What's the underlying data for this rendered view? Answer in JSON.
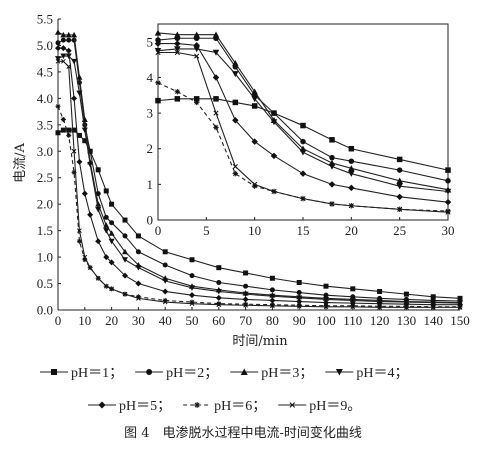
{
  "chart_data": {
    "type": "line",
    "caption": "图 4　电渗脱水过程中电流-时间变化曲线",
    "xlabel": "时间/min",
    "ylabel": "电流/A",
    "xlim": [
      0,
      150
    ],
    "ylim": [
      0,
      5.5
    ],
    "x_ticks": [
      "0",
      "10",
      "20",
      "30",
      "40",
      "50",
      "60",
      "70",
      "80",
      "90",
      "100",
      "110",
      "120",
      "130",
      "140",
      "150"
    ],
    "y_ticks": [
      "0.0",
      "0.5",
      "1.0",
      "1.5",
      "2.0",
      "2.5",
      "3.0",
      "3.5",
      "4.0",
      "4.5",
      "5.0",
      "5.5"
    ],
    "grid": false,
    "legend_position": "bottom",
    "inset": {
      "xlim": [
        0,
        30
      ],
      "ylim": [
        0,
        5.5
      ],
      "x_ticks": [
        "0",
        "5",
        "10",
        "15",
        "20",
        "25",
        "30"
      ],
      "y_ticks": [
        "0",
        "1",
        "2",
        "3",
        "4",
        "5"
      ]
    },
    "series": [
      {
        "name": "pH＝1",
        "legend_label": "pH＝1；",
        "marker": "square",
        "dash": "solid",
        "x": [
          0,
          2,
          4,
          6,
          8,
          10,
          12,
          15,
          18,
          20,
          25,
          30,
          40,
          50,
          60,
          70,
          80,
          90,
          100,
          110,
          120,
          130,
          140,
          150
        ],
        "y": [
          3.35,
          3.4,
          3.4,
          3.4,
          3.3,
          3.2,
          3.0,
          2.65,
          2.25,
          2.0,
          1.7,
          1.4,
          1.1,
          0.95,
          0.8,
          0.7,
          0.6,
          0.52,
          0.45,
          0.4,
          0.35,
          0.3,
          0.25,
          0.22
        ]
      },
      {
        "name": "pH＝2",
        "legend_label": "pH＝2；",
        "marker": "circle",
        "dash": "solid",
        "x": [
          0,
          2,
          4,
          6,
          8,
          10,
          12,
          15,
          18,
          20,
          25,
          30,
          40,
          50,
          60,
          70,
          80,
          90,
          100,
          110,
          120,
          130,
          140,
          150
        ],
        "y": [
          5.05,
          5.1,
          5.1,
          5.1,
          4.3,
          3.5,
          3.0,
          2.2,
          1.75,
          1.65,
          1.4,
          1.1,
          0.85,
          0.65,
          0.52,
          0.45,
          0.38,
          0.33,
          0.28,
          0.25,
          0.22,
          0.2,
          0.18,
          0.17
        ]
      },
      {
        "name": "pH＝3",
        "legend_label": "pH＝3；",
        "marker": "triangle",
        "dash": "solid",
        "x": [
          0,
          2,
          4,
          6,
          8,
          10,
          12,
          15,
          18,
          20,
          25,
          30,
          40,
          50,
          60,
          70,
          80,
          90,
          100,
          110,
          120,
          130,
          140,
          150
        ],
        "y": [
          5.25,
          5.2,
          5.2,
          5.2,
          4.4,
          3.6,
          2.8,
          2.0,
          1.6,
          1.45,
          1.1,
          0.85,
          0.6,
          0.45,
          0.38,
          0.32,
          0.28,
          0.25,
          0.22,
          0.2,
          0.18,
          0.16,
          0.15,
          0.14
        ]
      },
      {
        "name": "pH＝4",
        "legend_label": "pH＝4；",
        "marker": "triangle-down",
        "dash": "solid",
        "x": [
          0,
          2,
          4,
          6,
          8,
          10,
          12,
          15,
          18,
          20,
          25,
          30,
          40,
          50,
          60,
          70,
          80,
          90,
          100,
          110,
          120,
          130,
          140,
          150
        ],
        "y": [
          4.75,
          4.8,
          4.8,
          4.7,
          4.1,
          3.4,
          2.75,
          1.9,
          1.5,
          1.3,
          0.95,
          0.8,
          0.55,
          0.42,
          0.35,
          0.3,
          0.26,
          0.23,
          0.2,
          0.18,
          0.16,
          0.15,
          0.14,
          0.13
        ]
      },
      {
        "name": "pH＝5",
        "legend_label": "pH＝5；",
        "marker": "diamond",
        "dash": "solid",
        "x": [
          0,
          2,
          4,
          6,
          8,
          10,
          12,
          15,
          18,
          20,
          25,
          30,
          40,
          50,
          60,
          70,
          80,
          90,
          100,
          110,
          120,
          130,
          140,
          150
        ],
        "y": [
          4.95,
          4.95,
          4.9,
          4.0,
          2.8,
          2.2,
          1.8,
          1.3,
          1.0,
          0.9,
          0.65,
          0.5,
          0.35,
          0.28,
          0.23,
          0.2,
          0.18,
          0.16,
          0.14,
          0.13,
          0.12,
          0.11,
          0.1,
          0.1
        ]
      },
      {
        "name": "pH＝6",
        "legend_label": "pH＝6；",
        "marker": "asterisk",
        "dash": "dashed",
        "x": [
          0,
          2,
          4,
          6,
          8,
          10,
          12,
          15,
          18,
          20,
          25,
          30,
          40,
          50,
          60,
          70,
          80,
          90,
          100,
          110,
          120,
          130,
          140,
          150
        ],
        "y": [
          3.85,
          3.6,
          3.3,
          2.6,
          1.3,
          0.95,
          0.8,
          0.6,
          0.45,
          0.4,
          0.3,
          0.25,
          0.18,
          0.15,
          0.12,
          0.11,
          0.1,
          0.09,
          0.08,
          0.08,
          0.07,
          0.07,
          0.06,
          0.06
        ]
      },
      {
        "name": "pH＝9",
        "legend_label": "pH＝9。",
        "marker": "x",
        "dash": "solid",
        "x": [
          0,
          2,
          4,
          6,
          8,
          10,
          12,
          15,
          18,
          20,
          25,
          30,
          40,
          50,
          60,
          70,
          80,
          90,
          100,
          110,
          120,
          130,
          140,
          150
        ],
        "y": [
          4.7,
          4.7,
          4.6,
          3.0,
          1.5,
          1.0,
          0.8,
          0.6,
          0.45,
          0.4,
          0.3,
          0.22,
          0.15,
          0.12,
          0.1,
          0.09,
          0.08,
          0.07,
          0.06,
          0.06,
          0.05,
          0.05,
          0.05,
          0.05
        ]
      }
    ]
  }
}
